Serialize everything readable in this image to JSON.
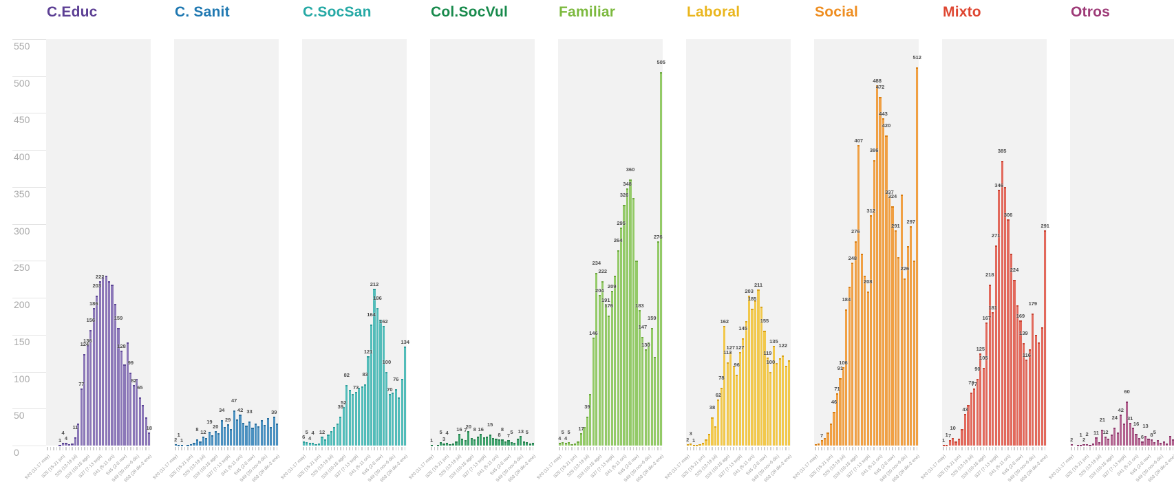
{
  "chart_data": {
    "type": "bar",
    "title": "",
    "y_axis": {
      "min": 0,
      "max": 550,
      "step": 50,
      "ticks": [
        550,
        500,
        450,
        400,
        350,
        300,
        250,
        200,
        150,
        100,
        50,
        0
      ]
    },
    "x_tick_labels": [
      "S20 (11-17 may)",
      "S25 (15-21 jun)",
      "S29 (13-19 jul)",
      "S33 (10-16 ago)",
      "S37 (7-13 sept)",
      "S41 (5-11 oct)",
      "S45 (2-8 nov)",
      "S49 (30 nov-6 dic)",
      "S53 (28 dic-3 ene)"
    ],
    "x_tick_indices": [
      0,
      5,
      9,
      13,
      17,
      21,
      25,
      29,
      33
    ],
    "n_bars": 34,
    "grid": false,
    "panel_bg": "#f2f2f2",
    "panels": [
      {
        "label": "C.Educ",
        "title_color": "#5c3f94",
        "bar_color": "#8b77b8",
        "cap_color": "#5e4796",
        "values": [
          0,
          0,
          0,
          0,
          1,
          4,
          4,
          2,
          3,
          11,
          30,
          77,
          124,
          136,
          156,
          186,
          203,
          222,
          228,
          230,
          222,
          218,
          192,
          159,
          128,
          110,
          140,
          99,
          82,
          90,
          65,
          55,
          38,
          18
        ],
        "labels": {
          "4": "1",
          "5": "4",
          "6": "4",
          "9": "11",
          "11": "77",
          "12": "124",
          "13": "136",
          "14": "156",
          "15": "186",
          "16": "203",
          "17": "222",
          "23": "159",
          "24": "128",
          "27": "99",
          "28": "82",
          "30": "65",
          "33": "18"
        }
      },
      {
        "label": "C. Sanit",
        "title_color": "#1f78b1",
        "bar_color": "#4a90c0",
        "cap_color": "#2b6f9e",
        "values": [
          2,
          1,
          1,
          0,
          1,
          2,
          4,
          8,
          6,
          12,
          10,
          19,
          14,
          20,
          17,
          34,
          25,
          29,
          22,
          47,
          35,
          42,
          31,
          27,
          33,
          24,
          30,
          26,
          34,
          28,
          37,
          25,
          39,
          30
        ],
        "labels": {
          "0": "2",
          "1": "1",
          "2": "1",
          "7": "8",
          "9": "12",
          "11": "19",
          "13": "20",
          "15": "34",
          "17": "29",
          "19": "47",
          "21": "42",
          "24": "33",
          "32": "39"
        }
      },
      {
        "label": "C.SocSan",
        "title_color": "#26a9a5",
        "bar_color": "#52bcb9",
        "cap_color": "#2f9e9b",
        "values": [
          6,
          5,
          4,
          4,
          2,
          3,
          12,
          8,
          15,
          20,
          25,
          30,
          39,
          52,
          82,
          75,
          70,
          73,
          78,
          80,
          83,
          121,
          164,
          212,
          186,
          170,
          162,
          100,
          70,
          72,
          76,
          65,
          90,
          134
        ],
        "labels": {
          "0": "6",
          "1": "5",
          "2": "4",
          "3": "4",
          "6": "12",
          "12": "39",
          "13": "52",
          "14": "82",
          "17": "73",
          "20": "83",
          "21": "121",
          "22": "164",
          "23": "212",
          "24": "186",
          "26": "162",
          "27": "100",
          "28": "70",
          "30": "76",
          "33": "134"
        }
      },
      {
        "label": "Col.SocVul",
        "title_color": "#188a4c",
        "bar_color": "#3ca06a",
        "cap_color": "#27804f",
        "values": [
          1,
          0,
          1,
          5,
          3,
          4,
          2,
          3,
          6,
          16,
          9,
          7,
          20,
          10,
          8,
          12,
          16,
          11,
          12,
          15,
          10,
          9,
          8,
          8,
          6,
          7,
          5,
          4,
          9,
          13,
          6,
          5,
          3,
          4
        ],
        "labels": {
          "0": "1",
          "3": "5",
          "4": "3",
          "5": "4",
          "9": "16",
          "11": "7",
          "12": "20",
          "14": "8",
          "16": "16",
          "19": "15",
          "22": "8",
          "23": "8",
          "25": "7",
          "26": "5",
          "29": "13",
          "31": "5"
        }
      },
      {
        "label": "Familiar",
        "title_color": "#7cb93e",
        "bar_color": "#93ca67",
        "cap_color": "#6da83e",
        "values": [
          4,
          5,
          4,
          5,
          2,
          3,
          6,
          17,
          25,
          39,
          70,
          146,
          234,
          204,
          222,
          191,
          176,
          209,
          230,
          264,
          295,
          326,
          348,
          360,
          335,
          250,
          183,
          147,
          130,
          140,
          159,
          120,
          276,
          505
        ],
        "labels": {
          "0": "4",
          "1": "5",
          "2": "4",
          "3": "5",
          "7": "17",
          "9": "39",
          "11": "146",
          "12": "234",
          "13": "204",
          "14": "222",
          "15": "191",
          "16": "176",
          "17": "209",
          "19": "264",
          "20": "295",
          "21": "326",
          "22": "348",
          "23": "360",
          "26": "183",
          "27": "147",
          "28": "130",
          "30": "159",
          "32": "276",
          "33": "505"
        }
      },
      {
        "label": "Laboral",
        "title_color": "#eab61e",
        "bar_color": "#f2c84b",
        "cap_color": "#d9a31a",
        "values": [
          2,
          3,
          1,
          1,
          2,
          4,
          8,
          16,
          38,
          26,
          62,
          78,
          162,
          113,
          127,
          108,
          96,
          127,
          145,
          168,
          203,
          185,
          196,
          211,
          188,
          155,
          119,
          100,
          135,
          112,
          118,
          122,
          108,
          115
        ],
        "labels": {
          "0": "2",
          "1": "3",
          "2": "1",
          "8": "38",
          "10": "62",
          "11": "78",
          "12": "162",
          "13": "113",
          "14": "127",
          "16": "96",
          "17": "127",
          "18": "145",
          "20": "203",
          "21": "185",
          "23": "211",
          "25": "155",
          "26": "119",
          "27": "100",
          "28": "135",
          "31": "122"
        }
      },
      {
        "label": "Social",
        "title_color": "#ee8d20",
        "bar_color": "#f0a044",
        "cap_color": "#d97f14",
        "values": [
          2,
          3,
          7,
          10,
          18,
          30,
          46,
          71,
          91,
          106,
          184,
          215,
          248,
          276,
          407,
          260,
          230,
          208,
          312,
          386,
          488,
          472,
          443,
          420,
          337,
          324,
          291,
          255,
          340,
          226,
          270,
          297,
          250,
          512
        ],
        "labels": {
          "2": "7",
          "6": "46",
          "7": "71",
          "8": "91",
          "9": "106",
          "10": "184",
          "12": "248",
          "13": "276",
          "14": "407",
          "17": "208",
          "18": "312",
          "19": "386",
          "20": "488",
          "21": "472",
          "22": "443",
          "23": "420",
          "24": "337",
          "25": "324",
          "26": "291",
          "29": "226",
          "31": "297",
          "33": "512"
        }
      },
      {
        "label": "Mixto",
        "title_color": "#de4631",
        "bar_color": "#e2695c",
        "cap_color": "#c74434",
        "values": [
          1,
          1,
          7,
          10,
          6,
          9,
          22,
          43,
          55,
          72,
          77,
          90,
          125,
          105,
          167,
          218,
          181,
          271,
          346,
          385,
          350,
          306,
          260,
          224,
          190,
          169,
          139,
          116,
          130,
          179,
          150,
          140,
          160,
          291
        ],
        "labels": {
          "0": "1",
          "1": "1",
          "2": "7",
          "3": "10",
          "7": "43",
          "9": "72",
          "10": "77",
          "11": "90",
          "12": "125",
          "13": "105",
          "14": "167",
          "15": "218",
          "16": "181",
          "17": "271",
          "18": "346",
          "19": "385",
          "21": "306",
          "23": "224",
          "25": "169",
          "26": "139",
          "27": "116",
          "29": "179",
          "33": "291"
        }
      },
      {
        "label": "Otros",
        "title_color": "#9e3b78",
        "bar_color": "#b2628f",
        "cap_color": "#8d3a6d",
        "values": [
          2,
          0,
          1,
          1,
          2,
          2,
          1,
          3,
          11,
          5,
          21,
          12,
          9,
          15,
          24,
          18,
          42,
          30,
          60,
          31,
          24,
          16,
          10,
          6,
          13,
          9,
          8,
          5,
          7,
          4,
          6,
          3,
          13,
          8
        ],
        "labels": {
          "0": "2",
          "3": "1",
          "4": "2",
          "5": "2",
          "8": "11",
          "10": "21",
          "11": "12",
          "14": "24",
          "16": "42",
          "18": "60",
          "19": "31",
          "21": "16",
          "23": "6",
          "24": "13",
          "26": "8",
          "27": "5"
        }
      }
    ]
  }
}
